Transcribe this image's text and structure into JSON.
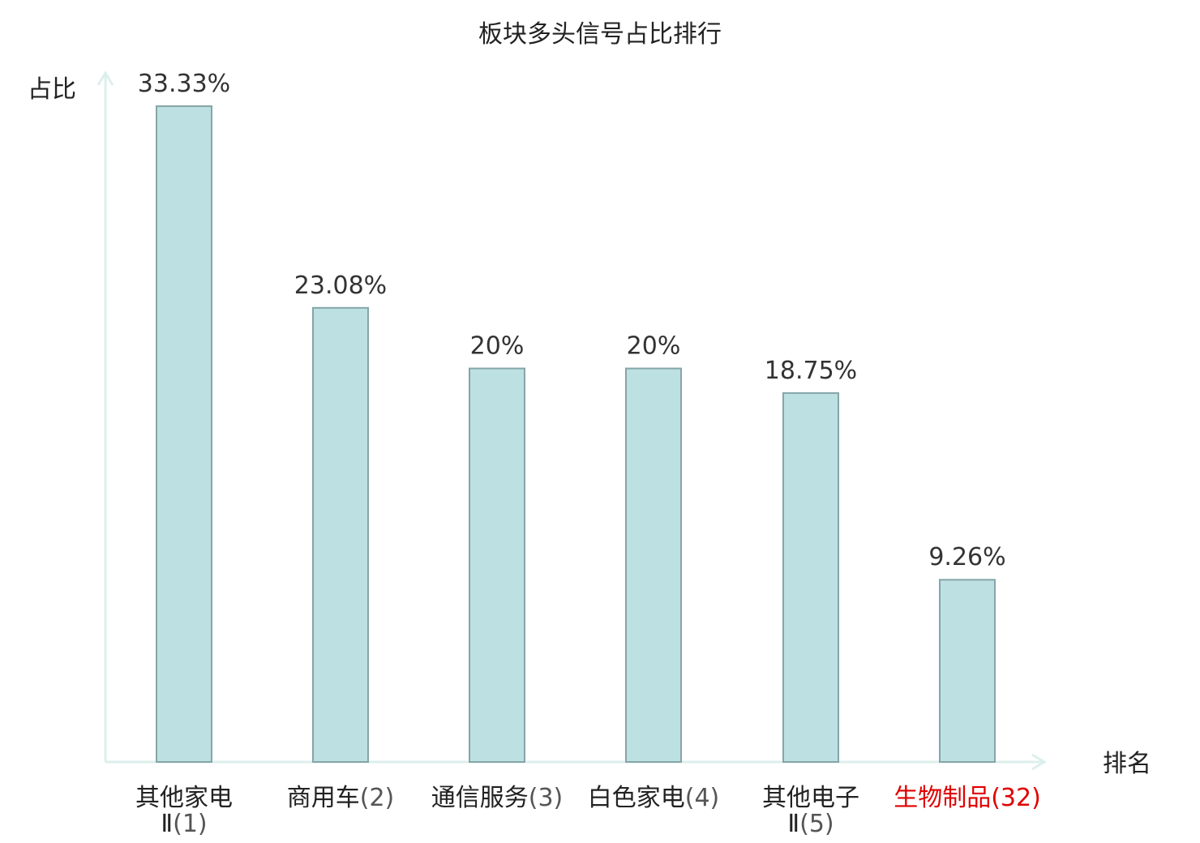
{
  "chart_data": {
    "type": "bar",
    "title": "板块多头信号占比排行",
    "xlabel": "排名",
    "ylabel": "占比",
    "grid": false,
    "legend": "none",
    "ylim": [
      0,
      35
    ],
    "categories": [
      {
        "name_lines": [
          "其他家电",
          "Ⅱ"
        ],
        "rank": "(1)",
        "highlight": false
      },
      {
        "name_lines": [
          "商用车"
        ],
        "rank": "(2)",
        "highlight": false
      },
      {
        "name_lines": [
          "通信服务"
        ],
        "rank": "(3)",
        "highlight": false
      },
      {
        "name_lines": [
          "白色家电"
        ],
        "rank": "(4)",
        "highlight": false
      },
      {
        "name_lines": [
          "其他电子",
          "Ⅱ"
        ],
        "rank": "(5)",
        "highlight": false
      },
      {
        "name_lines": [
          "生物制品"
        ],
        "rank": "(32)",
        "highlight": true
      }
    ],
    "values": [
      33.33,
      23.08,
      20,
      20,
      18.75,
      9.26
    ],
    "value_labels": [
      "33.33%",
      "23.08%",
      "20%",
      "20%",
      "18.75%",
      "9.26%"
    ]
  },
  "colors": {
    "bar_fill": "#bde0e3",
    "bar_stroke": "#86a5a7",
    "axis": "#dcefed",
    "highlight_text": "#e00000",
    "text": "#222222",
    "rank_text": "#555555"
  }
}
